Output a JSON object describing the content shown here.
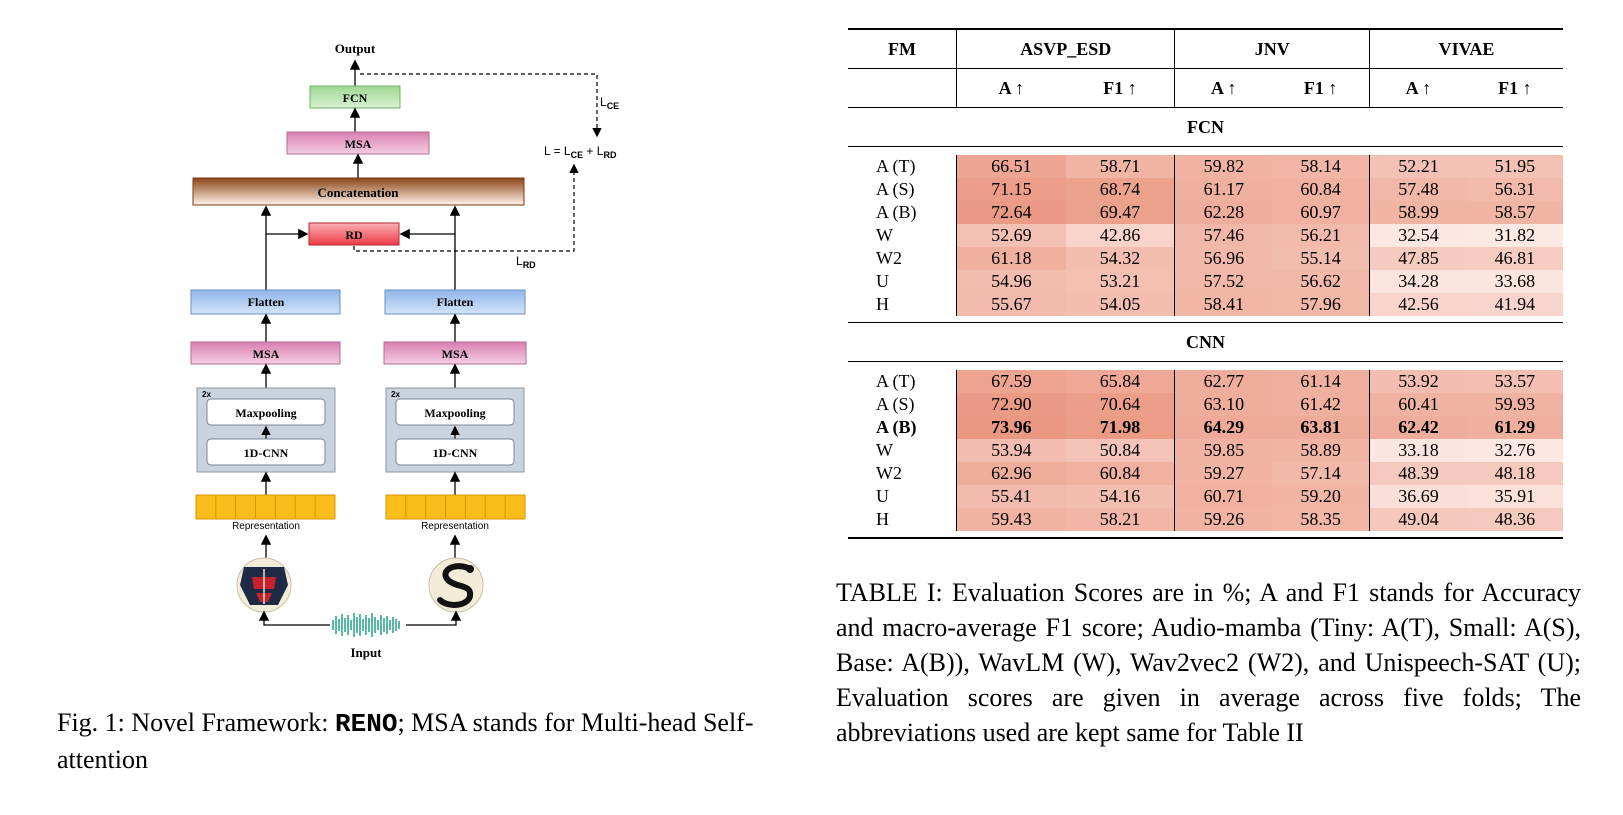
{
  "figure": {
    "labels": {
      "output": "Output",
      "fcn": "FCN",
      "msa_top": "MSA",
      "concat": "Concatenation",
      "rd": "RD",
      "flatten_left": "Flatten",
      "flatten_right": "Flatten",
      "msa_left": "MSA",
      "msa_right": "MSA",
      "repeat_left": "2x",
      "repeat_right": "2x",
      "maxpool_left": "Maxpooling",
      "maxpool_right": "Maxpooling",
      "cnn_left": "1D-CNN",
      "cnn_right": "1D-CNN",
      "rep_left": "Representation",
      "rep_right": "Representation",
      "input": "Input",
      "lce": "L",
      "lce_sub": "CE",
      "lrd": "L",
      "lrd_sub": "RD",
      "loss_eq_l": "L = L",
      "loss_eq_ce": "CE",
      "loss_eq_plus": " + L",
      "loss_eq_rd": "RD"
    },
    "colors": {
      "fcn": "#b9e3b0",
      "msa": "#e8a9c9",
      "concat": "#b86b2e",
      "rd": "#f2737b",
      "flatten": "#a9c8ef",
      "cnn_block": "#c5d0db",
      "representation": "#fbbd1c"
    },
    "caption_prefix": "Fig. 1: Novel Framework: ",
    "caption_name": "RENO",
    "caption_suffix": "; MSA stands for Multi-head Self-attention"
  },
  "table": {
    "header": {
      "fm": "FM",
      "datasets": [
        "ASVP_ESD",
        "JNV",
        "VIVAE"
      ],
      "sub": [
        "A ↑",
        "F1 ↑",
        "A ↑",
        "F1 ↑",
        "A ↑",
        "F1 ↑"
      ]
    },
    "sections": [
      {
        "name": "FCN",
        "rows": [
          {
            "fm": "A (T)",
            "values": [
              "66.51",
              "58.71",
              "59.82",
              "58.14",
              "52.21",
              "51.95"
            ],
            "bold": false
          },
          {
            "fm": "A (S)",
            "values": [
              "71.15",
              "68.74",
              "61.17",
              "60.84",
              "57.48",
              "56.31"
            ],
            "bold": false
          },
          {
            "fm": "A (B)",
            "values": [
              "72.64",
              "69.47",
              "62.28",
              "60.97",
              "58.99",
              "58.57"
            ],
            "bold": false
          },
          {
            "fm": "W",
            "values": [
              "52.69",
              "42.86",
              "57.46",
              "56.21",
              "32.54",
              "31.82"
            ],
            "bold": false
          },
          {
            "fm": "W2",
            "values": [
              "61.18",
              "54.32",
              "56.96",
              "55.14",
              "47.85",
              "46.81"
            ],
            "bold": false
          },
          {
            "fm": "U",
            "values": [
              "54.96",
              "53.21",
              "57.52",
              "56.62",
              "34.28",
              "33.68"
            ],
            "bold": false
          },
          {
            "fm": "H",
            "values": [
              "55.67",
              "54.05",
              "58.41",
              "57.96",
              "42.56",
              "41.94"
            ],
            "bold": false
          }
        ]
      },
      {
        "name": "CNN",
        "rows": [
          {
            "fm": "A (T)",
            "values": [
              "67.59",
              "65.84",
              "62.77",
              "61.14",
              "53.92",
              "53.57"
            ],
            "bold": false
          },
          {
            "fm": "A (S)",
            "values": [
              "72.90",
              "70.64",
              "63.10",
              "61.42",
              "60.41",
              "59.93"
            ],
            "bold": false
          },
          {
            "fm": "A (B)",
            "values": [
              "73.96",
              "71.98",
              "64.29",
              "63.81",
              "62.42",
              "61.29"
            ],
            "bold": true
          },
          {
            "fm": "W",
            "values": [
              "53.94",
              "50.84",
              "59.85",
              "58.89",
              "33.18",
              "32.76"
            ],
            "bold": false
          },
          {
            "fm": "W2",
            "values": [
              "62.96",
              "60.84",
              "59.27",
              "57.14",
              "48.39",
              "48.18"
            ],
            "bold": false
          },
          {
            "fm": "U",
            "values": [
              "55.41",
              "54.16",
              "60.71",
              "59.20",
              "36.69",
              "35.91"
            ],
            "bold": false
          },
          {
            "fm": "H",
            "values": [
              "59.43",
              "58.21",
              "59.26",
              "58.35",
              "49.04",
              "48.36"
            ],
            "bold": false
          }
        ]
      }
    ],
    "caption": "TABLE I: Evaluation Scores are in %; A and F1 stands for Accuracy and macro-average F1 score; Audio-mamba (Tiny: A(T), Small: A(S), Base: A(B)), WavLM (W), Wav2vec2 (W2), and Unispeech-SAT (U); Evaluation scores are given in average across five folds; The abbreviations used are kept same for Table II"
  }
}
